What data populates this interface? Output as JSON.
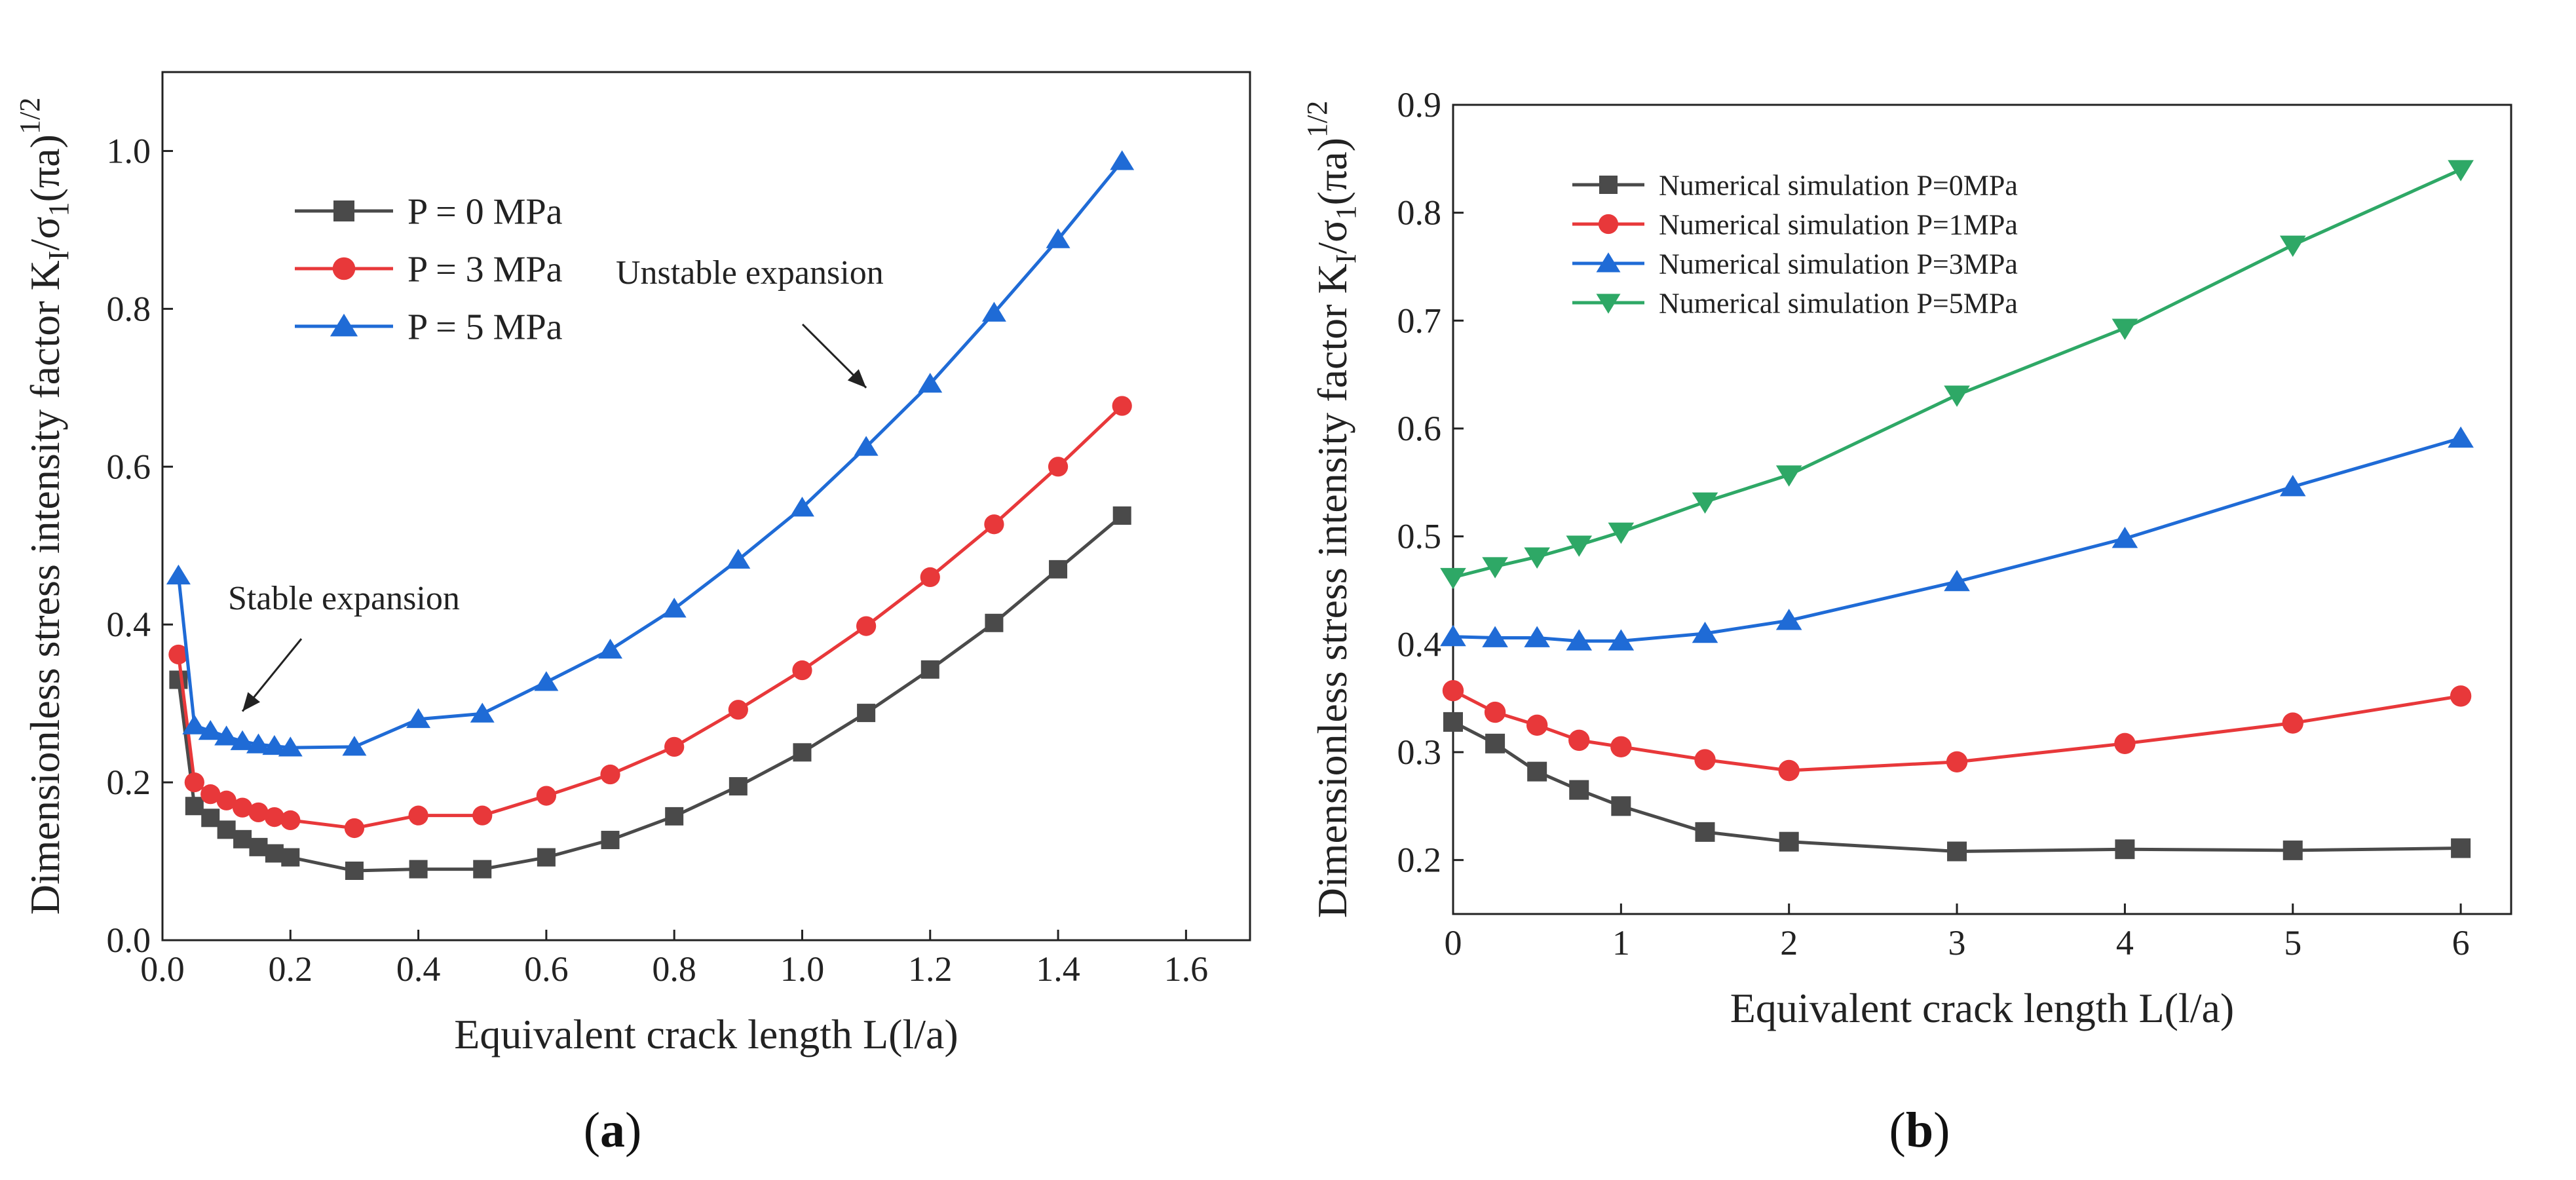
{
  "figure": {
    "panel_a_label": {
      "open": "(",
      "letter": "a",
      "close": ")"
    },
    "panel_b_label": {
      "open": "(",
      "letter": "b",
      "close": ")"
    }
  },
  "chart_data": [
    {
      "type": "line",
      "panel": "a",
      "xlabel": "Equivalent crack length L(l/a)",
      "ylabel": "Dimensionless stress intensity factor K_I/σ_1(πa)^1/2",
      "xlim": [
        0,
        1.7
      ],
      "ylim": [
        0,
        1.1
      ],
      "xticks": [
        0.0,
        0.2,
        0.4,
        0.6,
        0.8,
        1.0,
        1.2,
        1.4,
        1.6
      ],
      "xtick_labels": [
        "0.0",
        "0.2",
        "0.4",
        "0.6",
        "0.8",
        "1.0",
        "1.2",
        "1.4",
        "1.6"
      ],
      "yticks": [
        0.0,
        0.2,
        0.4,
        0.6,
        0.8,
        1.0
      ],
      "ytick_labels": [
        "0.0",
        "0.2",
        "0.4",
        "0.6",
        "0.8",
        "1.0"
      ],
      "grid": false,
      "legend_position": "top-left",
      "annotations": [
        {
          "text": "Unstable expansion",
          "target": [
            1.1,
            0.7
          ]
        },
        {
          "text": "Stable expansion",
          "target": [
            0.125,
            0.29
          ]
        }
      ],
      "series": [
        {
          "name": "P = 0 MPa",
          "color": "#4a4a4a",
          "marker": "square",
          "x": [
            0.025,
            0.05,
            0.075,
            0.1,
            0.125,
            0.15,
            0.175,
            0.2,
            0.3,
            0.4,
            0.5,
            0.6,
            0.7,
            0.8,
            0.9,
            1.0,
            1.1,
            1.2,
            1.3,
            1.4,
            1.5
          ],
          "y": [
            0.33,
            0.17,
            0.155,
            0.14,
            0.128,
            0.118,
            0.11,
            0.105,
            0.088,
            0.09,
            0.09,
            0.105,
            0.127,
            0.157,
            0.195,
            0.238,
            0.288,
            0.343,
            0.402,
            0.47,
            0.538
          ]
        },
        {
          "name": "P = 3 MPa",
          "color": "#e8383a",
          "marker": "circle",
          "x": [
            0.025,
            0.05,
            0.075,
            0.1,
            0.125,
            0.15,
            0.175,
            0.2,
            0.3,
            0.4,
            0.5,
            0.6,
            0.7,
            0.8,
            0.9,
            1.0,
            1.1,
            1.2,
            1.3,
            1.4,
            1.5
          ],
          "y": [
            0.362,
            0.2,
            0.185,
            0.177,
            0.168,
            0.162,
            0.156,
            0.152,
            0.142,
            0.158,
            0.158,
            0.183,
            0.21,
            0.245,
            0.292,
            0.342,
            0.398,
            0.46,
            0.527,
            0.6,
            0.677
          ]
        },
        {
          "name": "P = 5 MPa",
          "color": "#1f6bd6",
          "marker": "triangle-up",
          "x": [
            0.025,
            0.05,
            0.075,
            0.1,
            0.125,
            0.15,
            0.175,
            0.2,
            0.3,
            0.4,
            0.5,
            0.6,
            0.7,
            0.8,
            0.9,
            1.0,
            1.1,
            1.2,
            1.3,
            1.4,
            1.5
          ],
          "y": [
            0.462,
            0.272,
            0.265,
            0.258,
            0.252,
            0.248,
            0.246,
            0.244,
            0.245,
            0.28,
            0.287,
            0.327,
            0.368,
            0.42,
            0.482,
            0.548,
            0.625,
            0.705,
            0.795,
            0.888,
            0.987
          ]
        }
      ]
    },
    {
      "type": "line",
      "panel": "b",
      "xlabel": "Equivalent crack length L(l/a)",
      "ylabel": "Dimensionless stress intensity factor K_I/σ_1(πa)^1/2",
      "xlim": [
        0,
        6.3
      ],
      "ylim": [
        0.15,
        0.9
      ],
      "xticks": [
        0,
        1,
        2,
        3,
        4,
        5,
        6
      ],
      "xtick_labels": [
        "0",
        "1",
        "2",
        "3",
        "4",
        "5",
        "6"
      ],
      "yticks": [
        0.2,
        0.3,
        0.4,
        0.5,
        0.6,
        0.7,
        0.8,
        0.9
      ],
      "ytick_labels": [
        "0.2",
        "0.3",
        "0.4",
        "0.5",
        "0.6",
        "0.7",
        "0.8",
        "0.9"
      ],
      "grid": false,
      "legend_position": "top-left",
      "series": [
        {
          "name": "Numerical simulation P=0MPa",
          "color": "#4a4a4a",
          "marker": "square",
          "x": [
            0,
            0.25,
            0.5,
            0.75,
            1,
            1.5,
            2,
            3,
            4,
            5,
            6
          ],
          "y": [
            0.328,
            0.308,
            0.282,
            0.265,
            0.25,
            0.226,
            0.217,
            0.208,
            0.21,
            0.209,
            0.211
          ]
        },
        {
          "name": "Numerical simulation P=1MPa",
          "color": "#e8383a",
          "marker": "circle",
          "x": [
            0,
            0.25,
            0.5,
            0.75,
            1,
            1.5,
            2,
            3,
            4,
            5,
            6
          ],
          "y": [
            0.357,
            0.337,
            0.325,
            0.311,
            0.305,
            0.293,
            0.283,
            0.291,
            0.308,
            0.327,
            0.352
          ]
        },
        {
          "name": "Numerical simulation P=3MPa",
          "color": "#1f6bd6",
          "marker": "triangle-up",
          "x": [
            0,
            0.25,
            0.5,
            0.75,
            1,
            1.5,
            2,
            3,
            4,
            5,
            6
          ],
          "y": [
            0.407,
            0.406,
            0.406,
            0.403,
            0.403,
            0.41,
            0.422,
            0.458,
            0.498,
            0.546,
            0.591
          ]
        },
        {
          "name": "Numerical simulation P=5MPa",
          "color": "#2ea866",
          "marker": "triangle-down",
          "x": [
            0,
            0.25,
            0.5,
            0.75,
            1,
            1.5,
            2,
            3,
            4,
            5,
            6
          ],
          "y": [
            0.462,
            0.472,
            0.481,
            0.492,
            0.504,
            0.532,
            0.557,
            0.631,
            0.693,
            0.77,
            0.84
          ]
        }
      ]
    }
  ]
}
